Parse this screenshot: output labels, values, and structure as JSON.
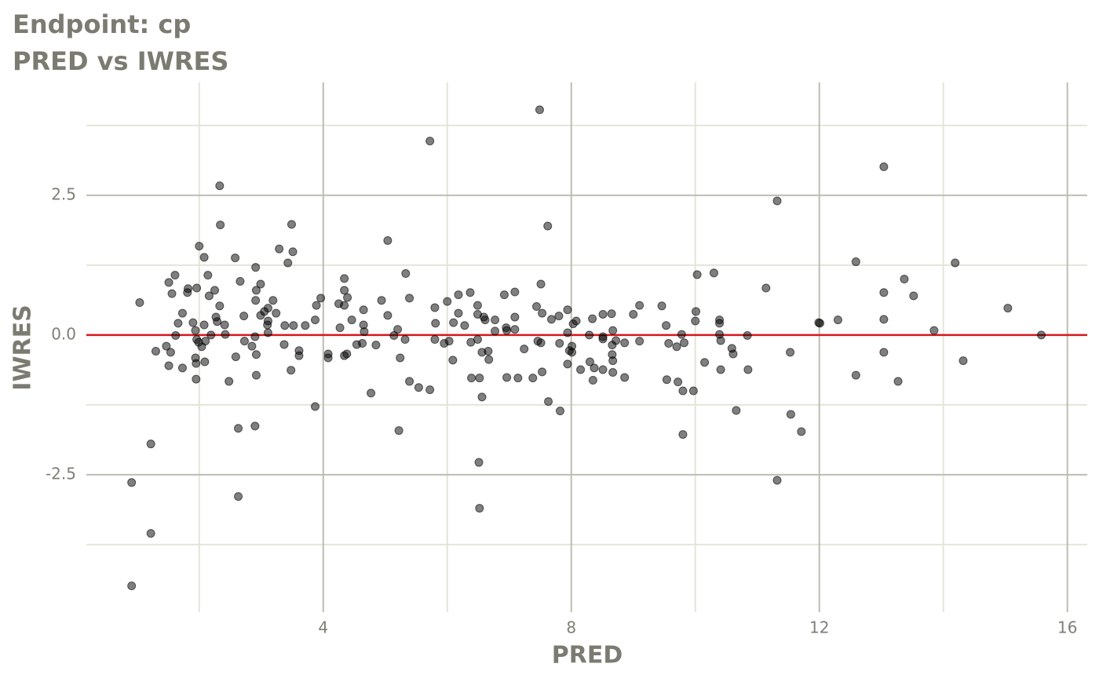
{
  "chart_data": {
    "type": "scatter",
    "title": "Endpoint:  cp",
    "subtitle": "PRED vs IWRES",
    "x_label": "PRED",
    "y_label": "IWRES",
    "xlim": [
      0.18,
      16.32
    ],
    "ylim": [
      -4.96,
      4.52
    ],
    "xticks": [
      4,
      8,
      12,
      16
    ],
    "yticks": [
      -2.5,
      {
        "value": 0,
        "label": "0.0"
      },
      2.5
    ],
    "xminor": [
      2,
      6,
      10,
      14
    ],
    "yminor": [
      -3.75,
      -1.25,
      1.25,
      3.75
    ],
    "grid": true,
    "hline": 0,
    "hline_color": "#d7191c",
    "color": "#000000",
    "x": [
      0.91,
      0.91,
      1.04,
      1.22,
      1.22,
      1.3,
      1.47,
      1.51,
      1.51,
      1.54,
      1.56,
      1.61,
      1.62,
      1.66,
      1.73,
      1.73,
      1.81,
      1.82,
      1.9,
      1.94,
      1.94,
      1.95,
      1.95,
      1.96,
      1.96,
      1.99,
      2.0,
      2.04,
      2.08,
      2.08,
      2.09,
      2.1,
      2.14,
      2.16,
      2.19,
      2.25,
      2.27,
      2.29,
      2.33,
      2.33,
      2.34,
      2.41,
      2.42,
      2.48,
      2.58,
      2.59,
      2.63,
      2.63,
      2.66,
      2.72,
      2.73,
      2.85,
      2.9,
      2.9,
      2.91,
      2.91,
      2.92,
      2.92,
      2.92,
      2.99,
      2.99,
      3.05,
      3.1,
      3.11,
      3.11,
      3.11,
      3.19,
      3.24,
      3.29,
      3.37,
      3.38,
      3.43,
      3.48,
      3.49,
      3.51,
      3.52,
      3.61,
      3.61,
      3.71,
      3.87,
      3.87,
      3.89,
      3.96,
      4.08,
      4.08,
      4.25,
      4.27,
      4.34,
      4.34,
      4.34,
      4.34,
      4.38,
      4.39,
      4.46,
      4.54,
      4.63,
      4.65,
      4.65,
      4.66,
      4.77,
      4.85,
      4.94,
      5.04,
      5.04,
      5.14,
      5.2,
      5.22,
      5.24,
      5.32,
      5.33,
      5.39,
      5.39,
      5.54,
      5.72,
      5.72,
      5.8,
      5.8,
      5.81,
      5.95,
      6.0,
      6.03,
      6.09,
      6.1,
      6.18,
      6.18,
      6.28,
      6.37,
      6.38,
      6.39,
      6.49,
      6.49,
      6.49,
      6.51,
      6.52,
      6.52,
      6.56,
      6.56,
      6.59,
      6.61,
      6.66,
      6.67,
      6.77,
      6.77,
      6.92,
      6.95,
      6.96,
      6.96,
      7.09,
      7.09,
      7.09,
      7.14,
      7.24,
      7.38,
      7.44,
      7.46,
      7.49,
      7.51,
      7.51,
      7.53,
      7.53,
      7.62,
      7.63,
      7.68,
      7.8,
      7.81,
      7.82,
      7.94,
      7.94,
      7.94,
      7.97,
      8.01,
      8.01,
      8.03,
      8.08,
      8.15,
      8.29,
      8.3,
      8.34,
      8.35,
      8.37,
      8.51,
      8.51,
      8.51,
      8.51,
      8.65,
      8.66,
      8.67,
      8.66,
      8.67,
      8.67,
      8.72,
      8.86,
      8.86,
      9.0,
      9.1,
      9.1,
      9.46,
      9.53,
      9.54,
      9.57,
      9.7,
      9.72,
      9.78,
      9.8,
      9.8,
      9.82,
      9.97,
      10.0,
      10.01,
      10.03,
      10.15,
      10.3,
      10.39,
      10.39,
      10.39,
      10.41,
      10.41,
      10.59,
      10.61,
      10.66,
      10.84,
      10.85,
      11.14,
      11.32,
      11.32,
      11.53,
      11.54,
      11.71,
      11.99,
      12.01,
      12.3,
      12.59,
      12.59,
      13.04,
      13.04,
      13.04,
      13.04,
      13.27,
      13.37,
      13.52,
      13.85,
      14.19,
      14.32,
      15.04,
      15.58
    ],
    "values": [
      -2.64,
      -4.49,
      0.58,
      -1.95,
      -3.55,
      -0.29,
      -0.2,
      0.94,
      -0.55,
      -0.31,
      0.74,
      1.07,
      -0.01,
      0.21,
      0.39,
      -0.59,
      0.76,
      0.83,
      0.22,
      0.08,
      -0.41,
      -0.79,
      -0.51,
      0.84,
      -0.08,
      -0.13,
      1.59,
      -0.21,
      1.39,
      0.18,
      -0.48,
      -0.11,
      1.07,
      0.7,
      0.0,
      0.8,
      0.32,
      0.24,
      2.67,
      0.52,
      1.97,
      0.18,
      0.01,
      -0.83,
      1.38,
      -0.39,
      -1.67,
      -2.89,
      0.96,
      0.34,
      -0.11,
      -0.2,
      -0.03,
      -1.63,
      1.21,
      0.62,
      0.8,
      -0.35,
      -0.72,
      0.91,
      0.35,
      0.42,
      0.18,
      0.48,
      0.04,
      0.25,
      0.62,
      0.39,
      1.54,
      -0.17,
      0.17,
      1.29,
      -0.63,
      1.98,
      1.49,
      0.17,
      -0.28,
      -0.37,
      0.17,
      -1.28,
      0.27,
      0.53,
      0.66,
      -0.34,
      -0.41,
      0.56,
      0.13,
      1.01,
      0.8,
      0.53,
      -0.37,
      -0.34,
      0.67,
      0.27,
      -0.17,
      -0.15,
      0.45,
      0.18,
      0.06,
      -1.04,
      -0.18,
      0.62,
      1.69,
      0.35,
      -0.01,
      0.1,
      -1.71,
      -0.41,
      -0.08,
      1.1,
      0.66,
      -0.83,
      -0.94,
      3.47,
      -0.98,
      0.49,
      -0.08,
      0.21,
      -0.15,
      0.6,
      -0.11,
      -0.45,
      0.22,
      0.39,
      0.72,
      0.17,
      0.76,
      -0.13,
      -0.77,
      0.53,
      -0.08,
      0.37,
      -2.28,
      -3.1,
      -0.77,
      -0.31,
      -1.11,
      0.32,
      0.27,
      -0.29,
      -0.44,
      0.27,
      0.07,
      0.72,
      0.13,
      -0.76,
      0.08,
      0.77,
      0.32,
      0.1,
      -0.77,
      -0.25,
      -0.77,
      0.51,
      -0.11,
      4.03,
      0.91,
      -0.14,
      0.39,
      -0.66,
      1.95,
      -1.19,
      0.28,
      0.34,
      -0.15,
      -1.36,
      0.45,
      0.04,
      -0.52,
      -0.28,
      -0.2,
      -0.31,
      0.2,
      0.25,
      -0.62,
      0.0,
      -0.48,
      0.29,
      -0.81,
      -0.59,
      0.37,
      -0.03,
      -0.07,
      -0.62,
      0.38,
      -0.18,
      0.08,
      -0.35,
      -0.67,
      -0.46,
      -0.1,
      -0.14,
      -0.76,
      0.37,
      0.53,
      -0.11,
      0.52,
      0.17,
      -0.8,
      -0.15,
      -0.21,
      -0.84,
      0.01,
      -1.78,
      -1.0,
      -0.14,
      -1.0,
      0.25,
      0.42,
      1.08,
      -0.49,
      1.11,
      0.27,
      0.21,
      0.01,
      -0.1,
      -0.62,
      -0.24,
      -0.34,
      -1.35,
      -0.01,
      -0.62,
      0.84,
      2.4,
      -2.6,
      -0.31,
      -1.42,
      -1.73,
      0.22,
      0.21,
      0.27,
      1.31,
      -0.72,
      3.01,
      0.76,
      0.28,
      -0.31,
      -0.83,
      1.0,
      0.7,
      0.08,
      1.29,
      -0.46,
      0.48,
      0.0
    ]
  }
}
